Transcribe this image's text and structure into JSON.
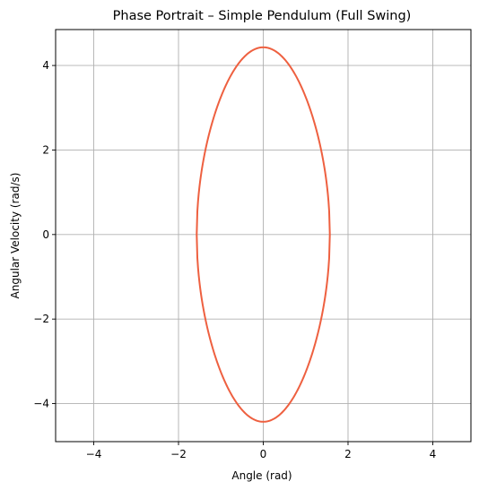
{
  "chart_data": {
    "type": "line",
    "title": "Phase Portrait – Simple Pendulum (Full Swing)",
    "xlabel": "Angle (rad)",
    "ylabel": "Angular Velocity (rad/s)",
    "xlim": [
      -4.9,
      4.9
    ],
    "ylim": [
      -4.9,
      4.85
    ],
    "xticks": [
      -4,
      -2,
      0,
      2,
      4
    ],
    "yticks": [
      -4,
      -2,
      0,
      2,
      4
    ],
    "xtick_labels": [
      "−4",
      "−2",
      "0",
      "2",
      "4"
    ],
    "ytick_labels": [
      "−4",
      "−2",
      "0",
      "2",
      "4"
    ],
    "grid": true,
    "series": [
      {
        "color": "#ee6040",
        "amplitude_angle": 1.5708,
        "max_angular_velocity": 4.43,
        "x": [],
        "y": []
      }
    ]
  },
  "colors": {
    "line": "#ee6040",
    "grid": "#b0b0b0",
    "background": "#ffffff"
  }
}
